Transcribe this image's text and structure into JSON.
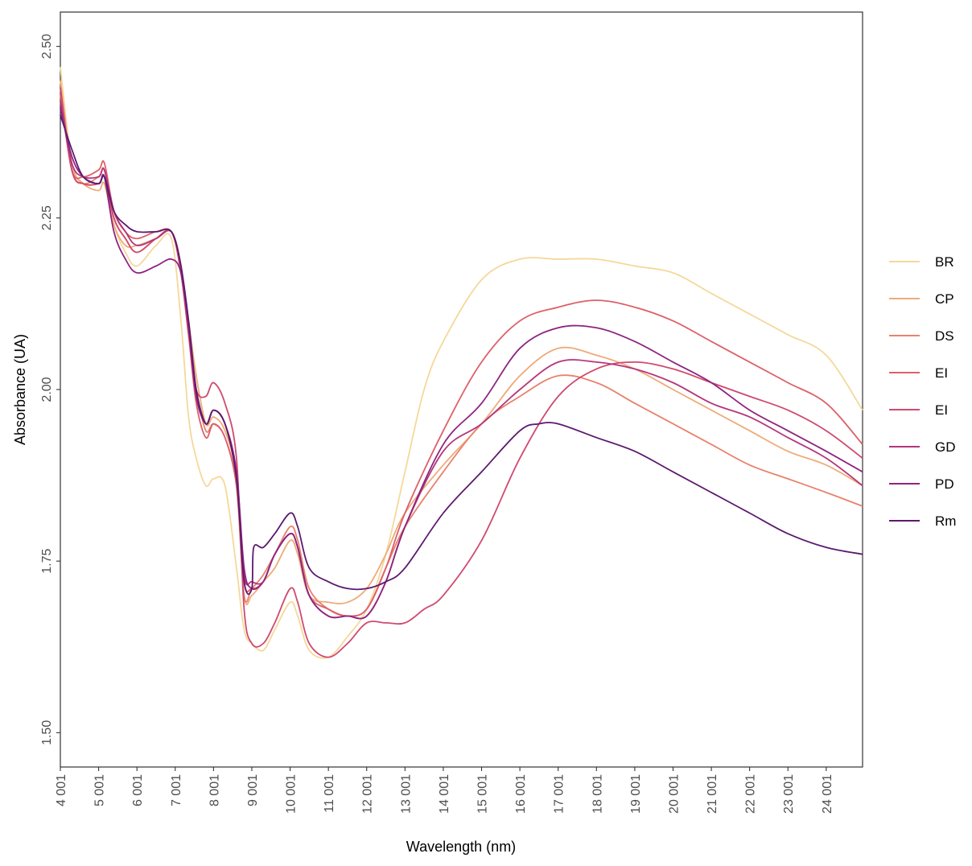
{
  "chart_data": {
    "type": "line",
    "title": "",
    "xlabel": "Wavelength (nm)",
    "ylabel": "Absorbance (UA)",
    "xlim": [
      4001,
      24950
    ],
    "ylim": [
      1.45,
      2.55
    ],
    "grid": false,
    "legend_position": "right",
    "x_ticks": [
      4001,
      5001,
      6001,
      7001,
      8001,
      9001,
      10001,
      11001,
      12001,
      13001,
      14001,
      15001,
      16001,
      17001,
      18001,
      19001,
      20001,
      21001,
      22001,
      23001,
      24001
    ],
    "x_tick_labels": [
      "4 001",
      "5 001",
      "6 001",
      "7 001",
      "8 001",
      "9 001",
      "10 001",
      "11 001",
      "12 001",
      "13 001",
      "14 001",
      "15 001",
      "16 001",
      "17 001",
      "18 001",
      "19 001",
      "20 001",
      "21 001",
      "22 001",
      "23 001",
      "24 001"
    ],
    "y_ticks": [
      1.5,
      1.75,
      2.0,
      2.25,
      2.5
    ],
    "y_tick_labels": [
      "1.50",
      "1.75",
      "2.00",
      "2.25",
      "2.50"
    ],
    "series": [
      {
        "name": "BR",
        "color": "#f5d89a",
        "x": [
          4001,
          4300,
          4600,
          5001,
          5150,
          5400,
          5700,
          6001,
          6500,
          6900,
          7150,
          7350,
          7550,
          7800,
          8001,
          8300,
          8600,
          8800,
          9001,
          9300,
          9600,
          10001,
          10200,
          10500,
          11001,
          11500,
          12001,
          12500,
          13001,
          13500,
          14001,
          15001,
          16001,
          17001,
          18001,
          19001,
          20001,
          21001,
          22001,
          23001,
          24001,
          24950
        ],
        "y": [
          2.47,
          2.33,
          2.3,
          2.3,
          2.31,
          2.24,
          2.2,
          2.18,
          2.21,
          2.22,
          2.1,
          1.96,
          1.9,
          1.86,
          1.87,
          1.86,
          1.74,
          1.65,
          1.63,
          1.62,
          1.65,
          1.69,
          1.67,
          1.62,
          1.61,
          1.64,
          1.68,
          1.76,
          1.88,
          2.0,
          2.07,
          2.16,
          2.19,
          2.19,
          2.19,
          2.18,
          2.17,
          2.14,
          2.11,
          2.08,
          2.05,
          1.97
        ]
      },
      {
        "name": "CP",
        "color": "#efab78",
        "x": [
          4001,
          4300,
          4600,
          5001,
          5150,
          5400,
          5700,
          6001,
          6500,
          6900,
          7150,
          7350,
          7550,
          7800,
          8001,
          8300,
          8600,
          8800,
          9001,
          9300,
          9600,
          10001,
          10200,
          10500,
          11001,
          11500,
          12001,
          12500,
          13001,
          14001,
          15001,
          16001,
          17001,
          18001,
          19001,
          20001,
          21001,
          22001,
          23001,
          24001,
          24950
        ],
        "y": [
          2.45,
          2.33,
          2.3,
          2.29,
          2.3,
          2.24,
          2.21,
          2.21,
          2.22,
          2.23,
          2.18,
          2.1,
          2.02,
          1.95,
          1.96,
          1.94,
          1.87,
          1.7,
          1.7,
          1.72,
          1.74,
          1.78,
          1.76,
          1.7,
          1.69,
          1.69,
          1.71,
          1.76,
          1.82,
          1.89,
          1.95,
          2.02,
          2.06,
          2.05,
          2.03,
          2.0,
          1.97,
          1.94,
          1.91,
          1.89,
          1.86
        ]
      },
      {
        "name": "DS",
        "color": "#e8826c",
        "x": [
          4001,
          4300,
          4600,
          5001,
          5150,
          5400,
          5700,
          6001,
          6500,
          6900,
          7150,
          7350,
          7550,
          7800,
          8001,
          8300,
          8600,
          8800,
          9001,
          9300,
          9600,
          10001,
          10200,
          10500,
          11001,
          11500,
          12001,
          12500,
          13001,
          14001,
          15001,
          16001,
          17001,
          18001,
          19001,
          20001,
          21001,
          22001,
          23001,
          24001,
          24950
        ],
        "y": [
          2.44,
          2.32,
          2.3,
          2.31,
          2.32,
          2.25,
          2.22,
          2.2,
          2.22,
          2.23,
          2.17,
          2.08,
          2.0,
          1.94,
          1.95,
          1.93,
          1.86,
          1.7,
          1.71,
          1.73,
          1.76,
          1.8,
          1.78,
          1.71,
          1.68,
          1.67,
          1.68,
          1.74,
          1.8,
          1.88,
          1.95,
          1.99,
          2.02,
          2.01,
          1.98,
          1.95,
          1.92,
          1.89,
          1.87,
          1.85,
          1.83
        ]
      },
      {
        "name": "EI",
        "color": "#dd6068",
        "x": [
          4001,
          4300,
          4600,
          5001,
          5150,
          5400,
          5700,
          6001,
          6500,
          6900,
          7150,
          7350,
          7550,
          7800,
          8001,
          8300,
          8600,
          8800,
          9001,
          9300,
          9600,
          10001,
          10200,
          10500,
          11001,
          11500,
          12001,
          12500,
          13001,
          14001,
          15001,
          16001,
          17001,
          18001,
          19001,
          20001,
          21001,
          22001,
          23001,
          24001,
          24950
        ],
        "y": [
          2.43,
          2.32,
          2.31,
          2.32,
          2.33,
          2.26,
          2.23,
          2.22,
          2.23,
          2.23,
          2.18,
          2.08,
          1.98,
          1.93,
          1.95,
          1.93,
          1.86,
          1.72,
          1.71,
          1.72,
          1.76,
          1.79,
          1.77,
          1.7,
          1.68,
          1.67,
          1.68,
          1.74,
          1.82,
          1.94,
          2.04,
          2.1,
          2.12,
          2.13,
          2.12,
          2.1,
          2.07,
          2.04,
          2.01,
          1.98,
          1.92
        ]
      },
      {
        "name": "EI",
        "color": "#cf4a70",
        "x": [
          4001,
          4300,
          4600,
          5001,
          5150,
          5400,
          5700,
          6001,
          6500,
          6900,
          7150,
          7350,
          7550,
          7800,
          8001,
          8300,
          8600,
          8800,
          9001,
          9300,
          9600,
          10001,
          10200,
          10500,
          11001,
          11500,
          12001,
          12500,
          13001,
          13500,
          14001,
          15001,
          16001,
          17001,
          18001,
          19001,
          20001,
          21001,
          22001,
          23001,
          24001,
          24950
        ],
        "y": [
          2.44,
          2.32,
          2.3,
          2.3,
          2.31,
          2.25,
          2.22,
          2.2,
          2.22,
          2.23,
          2.17,
          2.08,
          2.0,
          1.99,
          2.01,
          1.98,
          1.9,
          1.68,
          1.63,
          1.63,
          1.66,
          1.71,
          1.69,
          1.63,
          1.61,
          1.63,
          1.66,
          1.66,
          1.66,
          1.68,
          1.7,
          1.78,
          1.9,
          1.99,
          2.03,
          2.04,
          2.03,
          2.01,
          1.99,
          1.97,
          1.94,
          1.9
        ]
      },
      {
        "name": "GD",
        "color": "#b5367a",
        "x": [
          4001,
          4300,
          4600,
          5001,
          5150,
          5400,
          5700,
          6001,
          6500,
          6900,
          7150,
          7350,
          7550,
          7800,
          8001,
          8300,
          8600,
          8800,
          9001,
          9300,
          9600,
          10001,
          10200,
          10500,
          11001,
          11500,
          12001,
          12500,
          13001,
          14001,
          15001,
          16001,
          17001,
          18001,
          19001,
          20001,
          21001,
          22001,
          23001,
          24001,
          24950
        ],
        "y": [
          2.42,
          2.33,
          2.31,
          2.31,
          2.32,
          2.26,
          2.23,
          2.21,
          2.22,
          2.23,
          2.18,
          2.09,
          1.99,
          1.95,
          1.97,
          1.95,
          1.88,
          1.73,
          1.72,
          1.72,
          1.76,
          1.79,
          1.77,
          1.7,
          1.67,
          1.67,
          1.67,
          1.72,
          1.8,
          1.91,
          1.95,
          2.0,
          2.04,
          2.04,
          2.03,
          2.01,
          1.98,
          1.96,
          1.93,
          1.9,
          1.86
        ]
      },
      {
        "name": "PD",
        "color": "#8f2480",
        "x": [
          4001,
          4300,
          4600,
          5001,
          5150,
          5400,
          5700,
          6001,
          6500,
          6900,
          7150,
          7350,
          7550,
          7800,
          8001,
          8300,
          8600,
          8800,
          9001,
          9300,
          9600,
          10001,
          10200,
          10500,
          11001,
          11500,
          12001,
          12500,
          13001,
          14001,
          15001,
          16001,
          17001,
          18001,
          19001,
          20001,
          21001,
          22001,
          23001,
          24001,
          24950
        ],
        "y": [
          2.41,
          2.34,
          2.31,
          2.3,
          2.31,
          2.23,
          2.19,
          2.17,
          2.18,
          2.19,
          2.17,
          2.09,
          1.99,
          1.95,
          1.97,
          1.95,
          1.88,
          1.74,
          1.71,
          1.72,
          1.76,
          1.79,
          1.77,
          1.7,
          1.67,
          1.67,
          1.67,
          1.72,
          1.8,
          1.92,
          1.98,
          2.06,
          2.09,
          2.09,
          2.07,
          2.04,
          2.01,
          1.97,
          1.94,
          1.91,
          1.88
        ]
      },
      {
        "name": "Rm",
        "color": "#5c1a6e",
        "x": [
          4001,
          4300,
          4600,
          5001,
          5150,
          5400,
          5700,
          6001,
          6500,
          6900,
          7150,
          7350,
          7550,
          7800,
          8001,
          8300,
          8600,
          8800,
          9001,
          9050,
          9300,
          9600,
          10001,
          10200,
          10500,
          11001,
          11500,
          12001,
          12500,
          13001,
          14001,
          15001,
          16001,
          16500,
          17001,
          18001,
          19001,
          20001,
          21001,
          22001,
          23001,
          24001,
          24950
        ],
        "y": [
          2.4,
          2.35,
          2.31,
          2.3,
          2.31,
          2.26,
          2.24,
          2.23,
          2.23,
          2.23,
          2.18,
          2.1,
          2.0,
          1.95,
          1.97,
          1.95,
          1.87,
          1.72,
          1.71,
          1.77,
          1.77,
          1.79,
          1.82,
          1.8,
          1.74,
          1.72,
          1.71,
          1.71,
          1.72,
          1.74,
          1.82,
          1.88,
          1.94,
          1.95,
          1.95,
          1.93,
          1.91,
          1.88,
          1.85,
          1.82,
          1.79,
          1.77,
          1.76
        ]
      }
    ]
  }
}
